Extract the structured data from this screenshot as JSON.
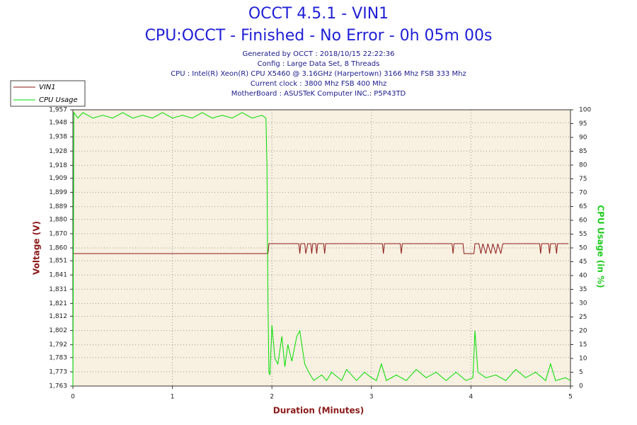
{
  "chart_data": {
    "type": "line",
    "title": "OCCT 4.5.1 - VIN1",
    "subtitle": "CPU:OCCT - Finished - No Error - 0h 05m 00s",
    "info": [
      "Generated by OCCT : 2018/10/15 22:22:36",
      "Config : Large Data Set, 8 Threads",
      "CPU : Intel(R) Xeon(R) CPU X5460 @ 3.16GHz (Harpertown) 3166 Mhz FSB 333 Mhz",
      "Current clock : 3800 Mhz FSB 400 Mhz",
      "MotherBoard : ASUSTeK Computer INC.: P5P43TD"
    ],
    "x_label": "Duration (Minutes)",
    "y_label": "Voltage (V)",
    "y2_label": "CPU Usage (in %)",
    "xlim": [
      0,
      5
    ],
    "xticks": [
      0,
      1,
      2,
      3,
      4,
      5
    ],
    "ylim": [
      1.763,
      1.957
    ],
    "yticks": [
      {
        "value": 1.763,
        "label": "1,763"
      },
      {
        "value": 1.773,
        "label": "1,773"
      },
      {
        "value": 1.783,
        "label": "1,783"
      },
      {
        "value": 1.792,
        "label": "1,792"
      },
      {
        "value": 1.802,
        "label": "1,802"
      },
      {
        "value": 1.812,
        "label": "1,812"
      },
      {
        "value": 1.821,
        "label": "1,821"
      },
      {
        "value": 1.831,
        "label": "1,831"
      },
      {
        "value": 1.841,
        "label": "1,841"
      },
      {
        "value": 1.851,
        "label": "1,851"
      },
      {
        "value": 1.86,
        "label": "1,860"
      },
      {
        "value": 1.87,
        "label": "1,870"
      },
      {
        "value": 1.88,
        "label": "1,880"
      },
      {
        "value": 1.889,
        "label": "1,889"
      },
      {
        "value": 1.899,
        "label": "1,899"
      },
      {
        "value": 1.909,
        "label": "1,909"
      },
      {
        "value": 1.918,
        "label": "1,918"
      },
      {
        "value": 1.928,
        "label": "1,928"
      },
      {
        "value": 1.938,
        "label": "1,938"
      },
      {
        "value": 1.948,
        "label": "1,948"
      },
      {
        "value": 1.957,
        "label": "1,957"
      }
    ],
    "y2lim": [
      0,
      100
    ],
    "y2ticks": [
      0,
      5,
      10,
      15,
      20,
      25,
      30,
      35,
      40,
      45,
      50,
      55,
      60,
      65,
      70,
      75,
      80,
      85,
      90,
      95,
      100
    ],
    "grid": true,
    "legend": "top-left",
    "series": [
      {
        "name": "VIN1",
        "color": "#8b1a1a",
        "x": [
          0,
          1.96,
          1.97,
          2.27,
          2.28,
          2.29,
          2.33,
          2.34,
          2.36,
          2.39,
          2.4,
          2.41,
          2.44,
          2.45,
          2.46,
          2.52,
          2.53,
          2.54,
          3.11,
          3.12,
          3.13,
          3.29,
          3.3,
          3.31,
          3.81,
          3.82,
          3.83,
          3.92,
          3.93,
          4.03,
          4.04,
          4.08,
          4.1,
          4.12,
          4.15,
          4.17,
          4.2,
          4.22,
          4.25,
          4.27,
          4.3,
          4.32,
          4.69,
          4.7,
          4.71,
          4.78,
          4.79,
          4.8,
          4.85,
          4.86,
          4.87,
          4.98
        ],
        "values": [
          1.856,
          1.856,
          1.863,
          1.863,
          1.856,
          1.863,
          1.863,
          1.856,
          1.863,
          1.863,
          1.856,
          1.863,
          1.863,
          1.856,
          1.863,
          1.863,
          1.856,
          1.863,
          1.863,
          1.856,
          1.863,
          1.863,
          1.856,
          1.863,
          1.863,
          1.856,
          1.863,
          1.863,
          1.856,
          1.856,
          1.863,
          1.863,
          1.856,
          1.863,
          1.856,
          1.863,
          1.856,
          1.863,
          1.856,
          1.863,
          1.856,
          1.863,
          1.863,
          1.856,
          1.863,
          1.863,
          1.856,
          1.863,
          1.863,
          1.856,
          1.863,
          1.863
        ]
      },
      {
        "name": "CPU Usage",
        "color": "#00dd00",
        "axis": "y2",
        "x": [
          0,
          0.01,
          0.05,
          0.1,
          0.2,
          0.3,
          0.4,
          0.5,
          0.6,
          0.7,
          0.8,
          0.9,
          1.0,
          1.1,
          1.2,
          1.3,
          1.4,
          1.5,
          1.6,
          1.7,
          1.8,
          1.9,
          1.94,
          1.95,
          1.96,
          1.97,
          1.98,
          2.0,
          2.03,
          2.06,
          2.1,
          2.13,
          2.16,
          2.2,
          2.25,
          2.28,
          2.3,
          2.33,
          2.37,
          2.42,
          2.5,
          2.55,
          2.6,
          2.7,
          2.75,
          2.85,
          2.93,
          3.0,
          3.05,
          3.1,
          3.15,
          3.25,
          3.35,
          3.45,
          3.55,
          3.65,
          3.75,
          3.85,
          3.95,
          4.02,
          4.04,
          4.07,
          4.15,
          4.25,
          4.35,
          4.45,
          4.55,
          4.65,
          4.75,
          4.8,
          4.85,
          4.95,
          5.0
        ],
        "values": [
          0,
          99,
          97,
          99,
          97,
          98,
          97,
          99,
          97,
          98,
          97,
          99,
          97,
          98,
          97,
          99,
          97,
          98,
          97,
          99,
          97,
          98,
          97,
          80,
          30,
          5,
          4,
          22,
          10,
          8,
          18,
          7,
          15,
          9,
          18,
          20,
          15,
          8,
          5,
          2,
          4,
          2,
          5,
          2,
          6,
          2,
          5,
          3,
          2,
          8,
          2,
          4,
          2,
          6,
          3,
          5,
          2,
          5,
          2,
          3,
          20,
          5,
          3,
          4,
          2,
          6,
          3,
          5,
          2,
          8,
          2,
          3,
          2
        ]
      }
    ]
  }
}
